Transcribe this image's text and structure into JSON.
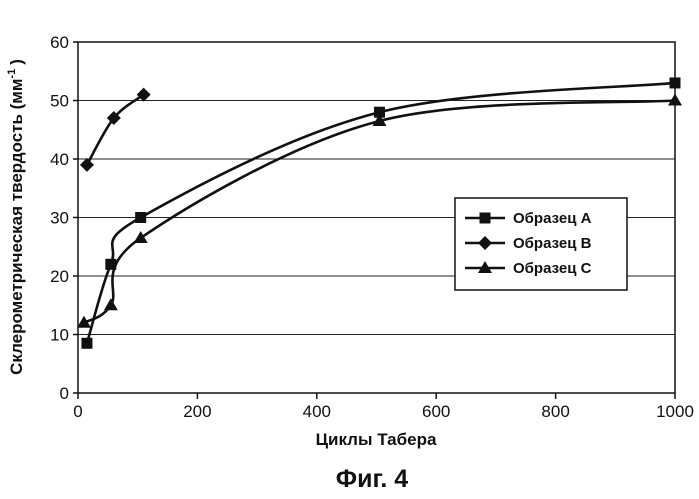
{
  "chart_data": {
    "type": "line",
    "title": "",
    "xlabel": "Циклы Табера",
    "ylabel": "Склерометрическая твердость (мм",
    "ylabel_sup": "-1",
    "ylabel_close": ")",
    "caption": "Фиг. 4",
    "xlim": [
      0,
      1000
    ],
    "ylim": [
      0,
      60
    ],
    "xticks": [
      "0",
      "200",
      "400",
      "600",
      "800",
      "1000"
    ],
    "yticks": [
      "0",
      "10",
      "20",
      "30",
      "40",
      "50",
      "60"
    ],
    "grid": "horizontal",
    "legend_position": "right",
    "series": [
      {
        "name": "Образец А",
        "marker": "square",
        "x": [
          15,
          55,
          105,
          505,
          1000
        ],
        "y": [
          8.5,
          22,
          30,
          48,
          53
        ]
      },
      {
        "name": "Образец В",
        "marker": "diamond",
        "x": [
          15,
          60,
          110
        ],
        "y": [
          39,
          47,
          51
        ]
      },
      {
        "name": "Образец С",
        "marker": "triangle",
        "x": [
          10,
          55,
          105,
          505,
          1000
        ],
        "y": [
          12,
          15,
          26.5,
          46.5,
          50
        ]
      }
    ]
  }
}
